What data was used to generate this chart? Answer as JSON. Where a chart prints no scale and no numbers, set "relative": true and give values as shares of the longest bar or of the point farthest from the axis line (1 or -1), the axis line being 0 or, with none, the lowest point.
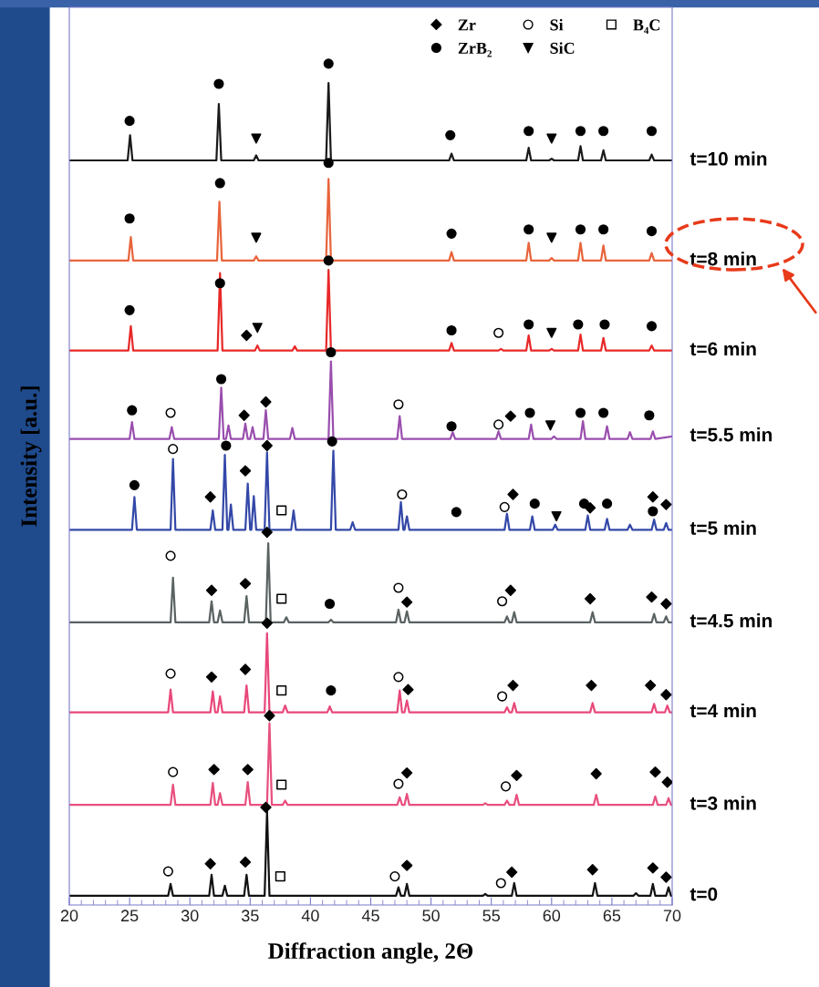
{
  "chart_data": {
    "type": "line",
    "relative": true,
    "xlabel": "Diffraction angle, 2Θ",
    "ylabel": "Intensity [a.u.]",
    "xlim": [
      20,
      70
    ],
    "xticks": [
      20,
      25,
      30,
      35,
      40,
      45,
      50,
      55,
      60,
      65,
      70
    ],
    "grid": false,
    "legend": "top right",
    "marker": "none",
    "line_style": "solid",
    "series": [
      {
        "name": "t=10 min",
        "color": "#1a1a1a",
        "x": [
          20,
          24.84,
          25.04,
          25.24,
          32.2,
          32.4,
          32.6,
          35.3,
          35.5,
          35.7,
          41.3,
          41.5,
          41.7,
          51.5,
          51.7,
          51.9,
          57.9,
          58.1,
          58.3,
          59.8,
          60,
          60.2,
          62.2,
          62.4,
          62.6,
          64.1,
          64.3,
          64.5,
          68.1,
          68.3,
          68.5,
          70
        ],
        "values": [
          0.885,
          0.885,
          0.915,
          0.885,
          0.885,
          0.952,
          0.885,
          0.885,
          0.891,
          0.885,
          0.885,
          0.977,
          0.885,
          0.885,
          0.893,
          0.885,
          0.885,
          0.9,
          0.885,
          0.885,
          0.887,
          0.885,
          0.885,
          0.902,
          0.885,
          0.885,
          0.897,
          0.885,
          0.885,
          0.892,
          0.885,
          0.885
        ]
      },
      {
        "name": "t=8 min",
        "color": "#e8643c",
        "x": [
          20,
          24.9,
          25.1,
          25.3,
          32.25,
          32.45,
          32.65,
          35.3,
          35.5,
          35.7,
          41.3,
          41.5,
          41.7,
          51.5,
          51.7,
          51.9,
          57.9,
          58.1,
          58.3,
          59.8,
          60,
          60.2,
          62.2,
          62.4,
          62.6,
          64.1,
          64.3,
          64.5,
          68.1,
          68.3,
          68.5,
          70
        ],
        "values": [
          0.766,
          0.766,
          0.794,
          0.766,
          0.766,
          0.836,
          0.766,
          0.766,
          0.771,
          0.766,
          0.766,
          0.863,
          0.766,
          0.766,
          0.776,
          0.766,
          0.766,
          0.787,
          0.766,
          0.766,
          0.769,
          0.766,
          0.766,
          0.787,
          0.766,
          0.766,
          0.784,
          0.766,
          0.766,
          0.775,
          0.766,
          0.766
        ]
      },
      {
        "name": "t=6 min",
        "color": "#e82828",
        "x": [
          20,
          24.9,
          25.1,
          25.3,
          32.3,
          32.5,
          32.7,
          35.4,
          35.6,
          35.8,
          38.5,
          38.7,
          38.9,
          41.3,
          41.5,
          41.7,
          51.5,
          51.7,
          51.9,
          55.6,
          55.8,
          56,
          57.9,
          58.1,
          58.3,
          59.8,
          60,
          60.2,
          62.2,
          62.4,
          62.6,
          64.1,
          64.3,
          64.5,
          68.1,
          68.3,
          68.5,
          70
        ],
        "values": [
          0.659,
          0.659,
          0.688,
          0.659,
          0.659,
          0.751,
          0.659,
          0.659,
          0.665,
          0.659,
          0.659,
          0.664,
          0.659,
          0.659,
          0.755,
          0.659,
          0.659,
          0.668,
          0.659,
          0.659,
          0.661,
          0.659,
          0.659,
          0.677,
          0.659,
          0.659,
          0.661,
          0.659,
          0.659,
          0.678,
          0.659,
          0.659,
          0.674,
          0.659,
          0.659,
          0.665,
          0.659,
          0.659
        ]
      },
      {
        "name": "t=5.5 min",
        "color": "#9a4eae",
        "x": [
          20,
          25,
          25.2,
          25.4,
          28.3,
          28.5,
          28.7,
          32.4,
          32.6,
          32.8,
          33,
          33.2,
          33.4,
          34.4,
          34.6,
          34.8,
          35,
          35.2,
          35.4,
          36.1,
          36.3,
          36.5,
          38.3,
          38.5,
          38.7,
          41.5,
          41.7,
          41.9,
          47.2,
          47.4,
          47.6,
          51.6,
          51.8,
          52,
          55.4,
          55.6,
          55.8,
          58.1,
          58.3,
          58.5,
          60,
          60.2,
          60.4,
          62.4,
          62.6,
          62.8,
          64.4,
          64.6,
          64.8,
          66.3,
          66.5,
          66.7,
          68.2,
          68.4,
          68.6,
          70
        ],
        "values": [
          0.554,
          0.554,
          0.574,
          0.554,
          0.554,
          0.568,
          0.554,
          0.554,
          0.615,
          0.554,
          0.554,
          0.57,
          0.554,
          0.554,
          0.572,
          0.554,
          0.554,
          0.568,
          0.554,
          0.554,
          0.588,
          0.554,
          0.554,
          0.567,
          0.554,
          0.554,
          0.646,
          0.554,
          0.554,
          0.581,
          0.554,
          0.554,
          0.562,
          0.554,
          0.554,
          0.563,
          0.554,
          0.554,
          0.571,
          0.554,
          0.554,
          0.557,
          0.554,
          0.554,
          0.575,
          0.554,
          0.554,
          0.569,
          0.554,
          0.554,
          0.562,
          0.554,
          0.554,
          0.563,
          0.554,
          0.557
        ]
      },
      {
        "name": "t=5 min",
        "color": "#3448a8",
        "x": [
          20,
          25.2,
          25.4,
          25.6,
          28.4,
          28.6,
          28.8,
          31.7,
          31.9,
          32.1,
          32.7,
          32.9,
          33.1,
          33.2,
          33.4,
          33.6,
          34.6,
          34.8,
          35,
          35.1,
          35.3,
          35.5,
          36.2,
          36.4,
          36.6,
          38.4,
          38.6,
          38.8,
          41.7,
          41.9,
          42.1,
          43.3,
          43.5,
          43.7,
          47.3,
          47.5,
          47.7,
          47.8,
          48,
          48.2,
          56.1,
          56.3,
          56.5,
          58.2,
          58.4,
          58.6,
          60.1,
          60.3,
          60.5,
          62.8,
          63,
          63.2,
          64.4,
          64.6,
          64.8,
          66.3,
          66.5,
          66.7,
          68.3,
          68.5,
          68.7,
          69.3,
          69.5,
          69.7,
          70
        ],
        "values": [
          0.446,
          0.446,
          0.485,
          0.446,
          0.446,
          0.53,
          0.446,
          0.446,
          0.469,
          0.446,
          0.446,
          0.535,
          0.446,
          0.446,
          0.476,
          0.446,
          0.446,
          0.501,
          0.446,
          0.446,
          0.486,
          0.446,
          0.446,
          0.538,
          0.446,
          0.446,
          0.469,
          0.446,
          0.446,
          0.54,
          0.446,
          0.446,
          0.455,
          0.446,
          0.446,
          0.479,
          0.446,
          0.446,
          0.462,
          0.446,
          0.446,
          0.465,
          0.446,
          0.446,
          0.462,
          0.446,
          0.446,
          0.452,
          0.446,
          0.446,
          0.463,
          0.446,
          0.446,
          0.459,
          0.446,
          0.446,
          0.452,
          0.446,
          0.446,
          0.458,
          0.446,
          0.446,
          0.454,
          0.446,
          0.446
        ]
      },
      {
        "name": "t=4.5 min",
        "color": "#5a6262",
        "x": [
          20,
          28.4,
          28.6,
          28.8,
          31.6,
          31.8,
          32,
          32.3,
          32.5,
          32.7,
          34.5,
          34.7,
          34.9,
          36.3,
          36.5,
          36.7,
          37.8,
          38,
          38.2,
          41.5,
          41.7,
          41.9,
          47.1,
          47.3,
          47.5,
          47.8,
          48,
          48.2,
          56.1,
          56.3,
          56.5,
          56.7,
          56.9,
          57.1,
          63.2,
          63.4,
          63.6,
          68.3,
          68.5,
          68.7,
          69.3,
          69.5,
          69.7,
          70
        ],
        "values": [
          0.336,
          0.336,
          0.389,
          0.336,
          0.336,
          0.361,
          0.336,
          0.336,
          0.35,
          0.336,
          0.336,
          0.367,
          0.336,
          0.336,
          0.43,
          0.336,
          0.336,
          0.342,
          0.336,
          0.336,
          0.339,
          0.336,
          0.336,
          0.351,
          0.336,
          0.336,
          0.349,
          0.336,
          0.336,
          0.343,
          0.336,
          0.336,
          0.348,
          0.336,
          0.336,
          0.348,
          0.336,
          0.336,
          0.346,
          0.336,
          0.336,
          0.343,
          0.336,
          0.336
        ]
      },
      {
        "name": "t=4 min",
        "color": "#e8487a",
        "x": [
          20,
          28.2,
          28.4,
          28.6,
          31.7,
          31.9,
          32.1,
          32.3,
          32.5,
          32.7,
          34.5,
          34.7,
          34.9,
          36.2,
          36.4,
          36.6,
          37.7,
          37.9,
          38.1,
          41.4,
          41.6,
          41.8,
          47.2,
          47.4,
          47.6,
          47.8,
          48,
          48.2,
          56.1,
          56.3,
          56.5,
          56.7,
          56.9,
          57.1,
          63.2,
          63.4,
          63.6,
          68.3,
          68.5,
          68.7,
          69.4,
          69.6,
          69.8,
          70
        ],
        "values": [
          0.229,
          0.229,
          0.256,
          0.229,
          0.229,
          0.254,
          0.229,
          0.229,
          0.248,
          0.229,
          0.229,
          0.261,
          0.229,
          0.229,
          0.323,
          0.229,
          0.229,
          0.237,
          0.229,
          0.229,
          0.236,
          0.229,
          0.229,
          0.255,
          0.229,
          0.229,
          0.243,
          0.229,
          0.229,
          0.235,
          0.229,
          0.229,
          0.24,
          0.229,
          0.229,
          0.24,
          0.229,
          0.229,
          0.239,
          0.229,
          0.229,
          0.237,
          0.229,
          0.229
        ]
      },
      {
        "name": "t=3 min",
        "color": "#e8507e",
        "x": [
          20,
          28.4,
          28.6,
          28.8,
          31.7,
          31.9,
          32.1,
          32.3,
          32.5,
          32.7,
          34.6,
          34.8,
          35,
          36.4,
          36.6,
          36.8,
          37.7,
          37.9,
          38.1,
          47.2,
          47.4,
          47.6,
          47.8,
          48,
          48.2,
          54.3,
          54.5,
          54.7,
          56.1,
          56.3,
          56.5,
          56.9,
          57.1,
          57.3,
          63.5,
          63.7,
          63.9,
          68.4,
          68.6,
          68.8,
          69.5,
          69.7,
          69.9,
          70
        ],
        "values": [
          0.119,
          0.119,
          0.143,
          0.119,
          0.119,
          0.145,
          0.119,
          0.119,
          0.133,
          0.119,
          0.119,
          0.146,
          0.119,
          0.119,
          0.216,
          0.119,
          0.119,
          0.124,
          0.119,
          0.119,
          0.128,
          0.119,
          0.119,
          0.132,
          0.119,
          0.119,
          0.121,
          0.119,
          0.119,
          0.124,
          0.119,
          0.119,
          0.131,
          0.119,
          0.119,
          0.131,
          0.119,
          0.119,
          0.129,
          0.119,
          0.119,
          0.127,
          0.119,
          0.119
        ]
      },
      {
        "name": "t=0",
        "color": "#111111",
        "x": [
          20,
          28.2,
          28.4,
          28.6,
          31.6,
          31.8,
          32,
          32.7,
          32.9,
          33.1,
          34.5,
          34.7,
          34.9,
          36.2,
          36.4,
          36.6,
          47.1,
          47.3,
          47.5,
          47.8,
          48,
          48.2,
          54.3,
          54.5,
          54.7,
          56.7,
          56.9,
          57.1,
          63.4,
          63.6,
          63.8,
          66.8,
          67,
          67.2,
          68.2,
          68.4,
          68.6,
          69.5,
          69.7,
          69.9,
          70
        ],
        "values": [
          0.011,
          0.011,
          0.025,
          0.011,
          0.011,
          0.036,
          0.011,
          0.011,
          0.023,
          0.011,
          0.011,
          0.036,
          0.011,
          0.011,
          0.111,
          0.011,
          0.011,
          0.021,
          0.011,
          0.011,
          0.025,
          0.011,
          0.011,
          0.013,
          0.011,
          0.011,
          0.026,
          0.011,
          0.011,
          0.026,
          0.011,
          0.011,
          0.014,
          0.011,
          0.011,
          0.025,
          0.011,
          0.011,
          0.021,
          0.011,
          0.011
        ]
      },
      {
        "name": "Zr",
        "type": "scatter",
        "marker": "diamond",
        "color": "#000000",
        "x": [
          34.7,
          34.5,
          36.3,
          56.6,
          31.7,
          34.6,
          36.4,
          56.8,
          63.2,
          68.4,
          69.5,
          31.8,
          34.6,
          36.4,
          48.0,
          56.6,
          63.2,
          68.3,
          69.5,
          31.8,
          34.6,
          36.4,
          48.1,
          56.8,
          63.3,
          68.2,
          69.5,
          32.0,
          34.8,
          36.6,
          48.0,
          57.1,
          63.7,
          68.6,
          69.6,
          31.7,
          34.6,
          36.3,
          48.0,
          56.7,
          63.4,
          68.4,
          69.5
        ],
        "values": [
          0.677,
          0.582,
          0.598,
          0.581,
          0.485,
          0.516,
          0.546,
          0.488,
          0.472,
          0.485,
          0.476,
          0.374,
          0.382,
          0.443,
          0.36,
          0.374,
          0.364,
          0.366,
          0.358,
          0.271,
          0.28,
          0.335,
          0.256,
          0.261,
          0.261,
          0.261,
          0.25,
          0.161,
          0.161,
          0.225,
          0.157,
          0.154,
          0.156,
          0.158,
          0.146,
          0.049,
          0.051,
          0.116,
          0.047,
          0.039,
          0.042,
          0.044,
          0.033
        ]
      },
      {
        "name": "Si",
        "type": "scatter",
        "marker": "circle",
        "color": "#ffffff",
        "x": [
          55.6,
          28.4,
          47.3,
          55.6,
          28.6,
          47.6,
          56.1,
          28.4,
          47.3,
          55.9,
          28.4,
          47.3,
          55.9,
          28.6,
          47.3,
          56.2,
          28.2,
          47.0,
          55.8
        ],
        "values": [
          0.68,
          0.585,
          0.595,
          0.571,
          0.542,
          0.488,
          0.473,
          0.415,
          0.377,
          0.361,
          0.275,
          0.271,
          0.248,
          0.158,
          0.144,
          0.141,
          0.04,
          0.034,
          0.026
        ]
      },
      {
        "name": "B₄C",
        "type": "scatter",
        "marker": "square",
        "color": "#ffffff",
        "x": [
          37.6,
          37.6,
          37.6,
          37.6,
          37.5
        ],
        "values": [
          0.469,
          0.364,
          0.255,
          0.143,
          0.034
        ]
      },
      {
        "name": "ZrB₂",
        "type": "scatter",
        "marker": "circle",
        "color": "#000000",
        "x": [
          25.0,
          32.4,
          41.5,
          51.6,
          58.1,
          62.4,
          64.3,
          68.3,
          25.0,
          32.5,
          41.5,
          51.7,
          58.1,
          62.4,
          64.3,
          68.3,
          25.0,
          32.5,
          41.5,
          51.7,
          58.1,
          62.2,
          64.4,
          68.3,
          25.2,
          32.6,
          41.7,
          51.7,
          58.2,
          62.4,
          64.3,
          68.1,
          25.4,
          33.0,
          41.8,
          52.1,
          58.6,
          62.7,
          64.6,
          68.4,
          41.6,
          41.7
        ],
        "values": [
          0.932,
          0.976,
          1.0,
          0.915,
          0.92,
          0.92,
          0.92,
          0.92,
          0.816,
          0.858,
          0.882,
          0.798,
          0.803,
          0.803,
          0.803,
          0.801,
          0.707,
          0.739,
          0.766,
          0.683,
          0.69,
          0.69,
          0.69,
          0.688,
          0.588,
          0.625,
          0.657,
          0.569,
          0.585,
          0.585,
          0.585,
          0.582,
          0.499,
          0.546,
          0.551,
          0.467,
          0.477,
          0.477,
          0.477,
          0.468,
          0.358,
          0.255
        ]
      },
      {
        "name": "SiC",
        "type": "scatter",
        "marker": "triangle",
        "color": "#000000",
        "x": [
          35.5,
          60.0,
          35.5,
          60.0,
          35.6,
          60.0,
          59.9,
          60.4
        ],
        "values": [
          0.911,
          0.911,
          0.793,
          0.793,
          0.686,
          0.68,
          0.57,
          0.462
        ]
      }
    ]
  }
}
